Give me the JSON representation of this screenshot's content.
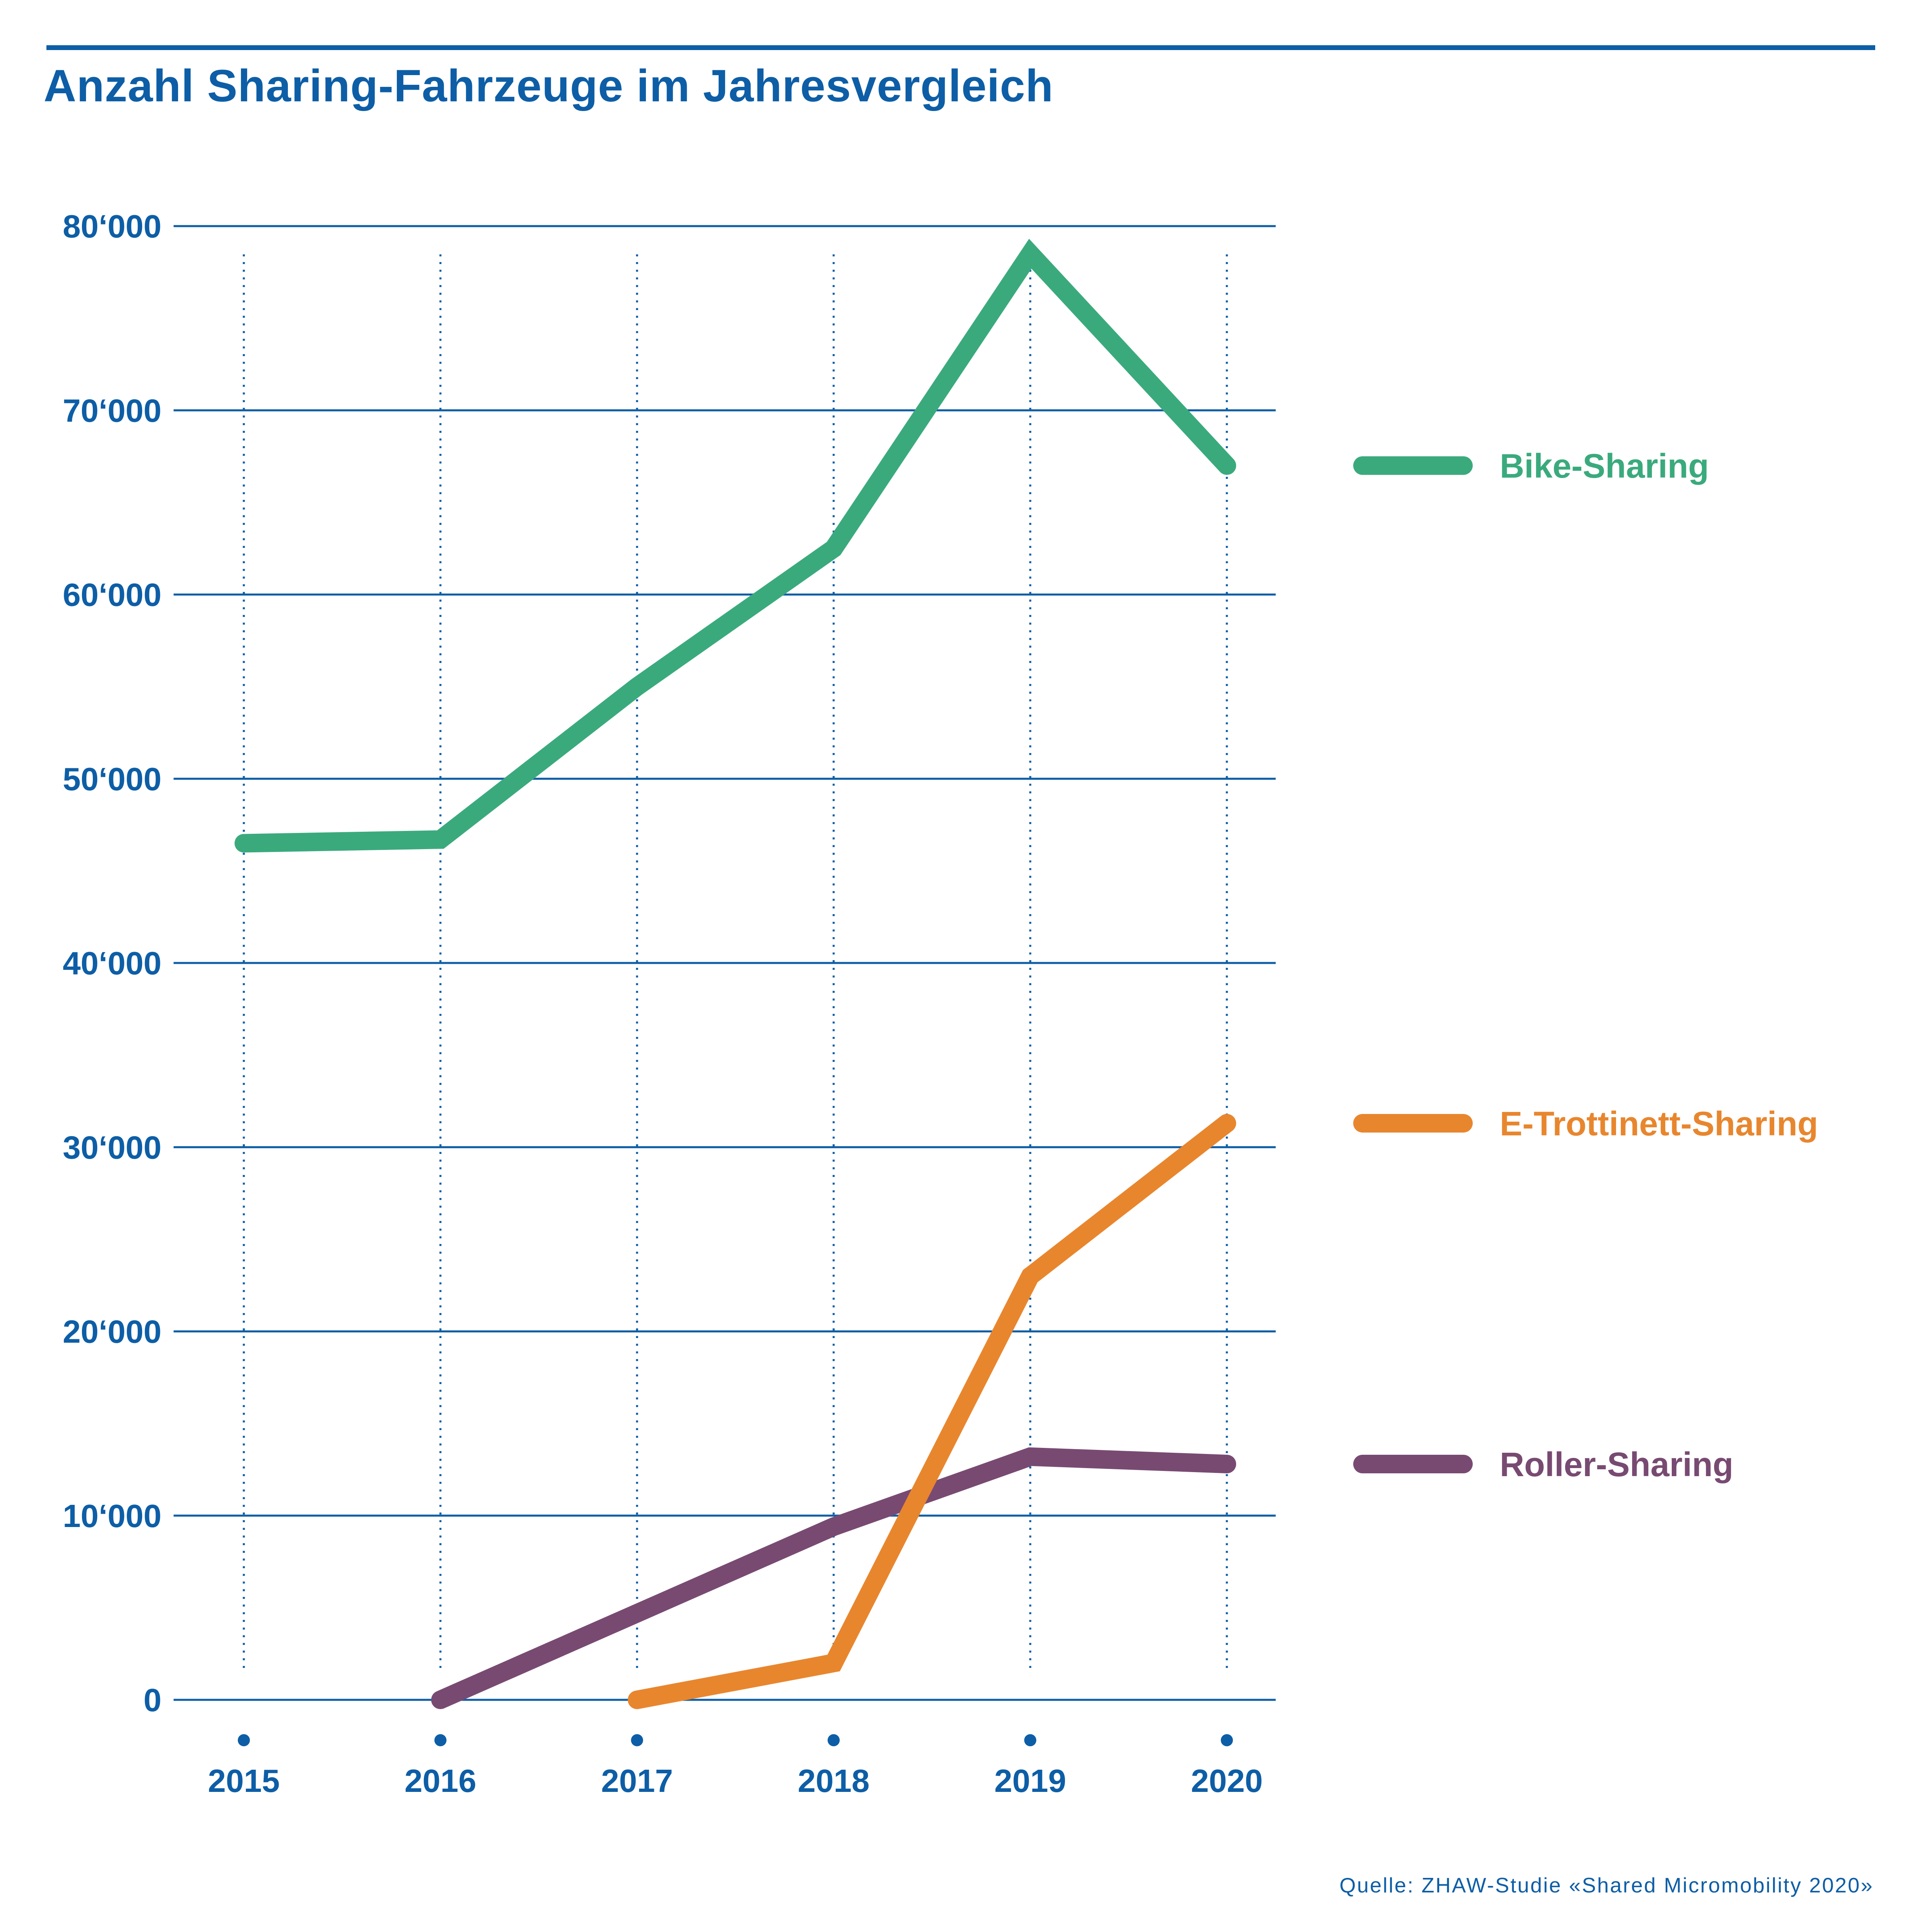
{
  "title": "Anzahl Sharing-Fahrzeuge im Jahresvergleich",
  "source": "Quelle: ZHAW-Studie «Shared Micromobility 2020»",
  "colors": {
    "accent": "#0d5ea6",
    "bike": "#3aaa7d",
    "etrottinett": "#e8862e",
    "roller": "#784a72"
  },
  "chart_data": {
    "type": "line",
    "title": "Anzahl Sharing-Fahrzeuge im Jahresvergleich",
    "xlabel": "",
    "ylabel": "",
    "categories": [
      "2015",
      "2016",
      "2017",
      "2018",
      "2019",
      "2020"
    ],
    "ylim": [
      0,
      80000
    ],
    "yticks": [
      0,
      10000,
      20000,
      30000,
      40000,
      50000,
      60000,
      70000,
      80000
    ],
    "ytick_labels": [
      "0",
      "10‘000",
      "20‘000",
      "30‘000",
      "40‘000",
      "50‘000",
      "60‘000",
      "70‘000",
      "80‘000"
    ],
    "grid": "horizontal solid, vertical dotted",
    "legend_placement": "right",
    "series": [
      {
        "name": "Bike-Sharing",
        "color": "#3aaa7d",
        "values": [
          46500,
          46700,
          55000,
          62500,
          78500,
          67000
        ]
      },
      {
        "name": "E-Trottinett-Sharing",
        "color": "#e8862e",
        "values": [
          null,
          null,
          0,
          2000,
          23000,
          31300
        ]
      },
      {
        "name": "Roller-Sharing",
        "color": "#784a72",
        "values": [
          null,
          0,
          4700,
          9400,
          13200,
          12800
        ]
      }
    ]
  }
}
